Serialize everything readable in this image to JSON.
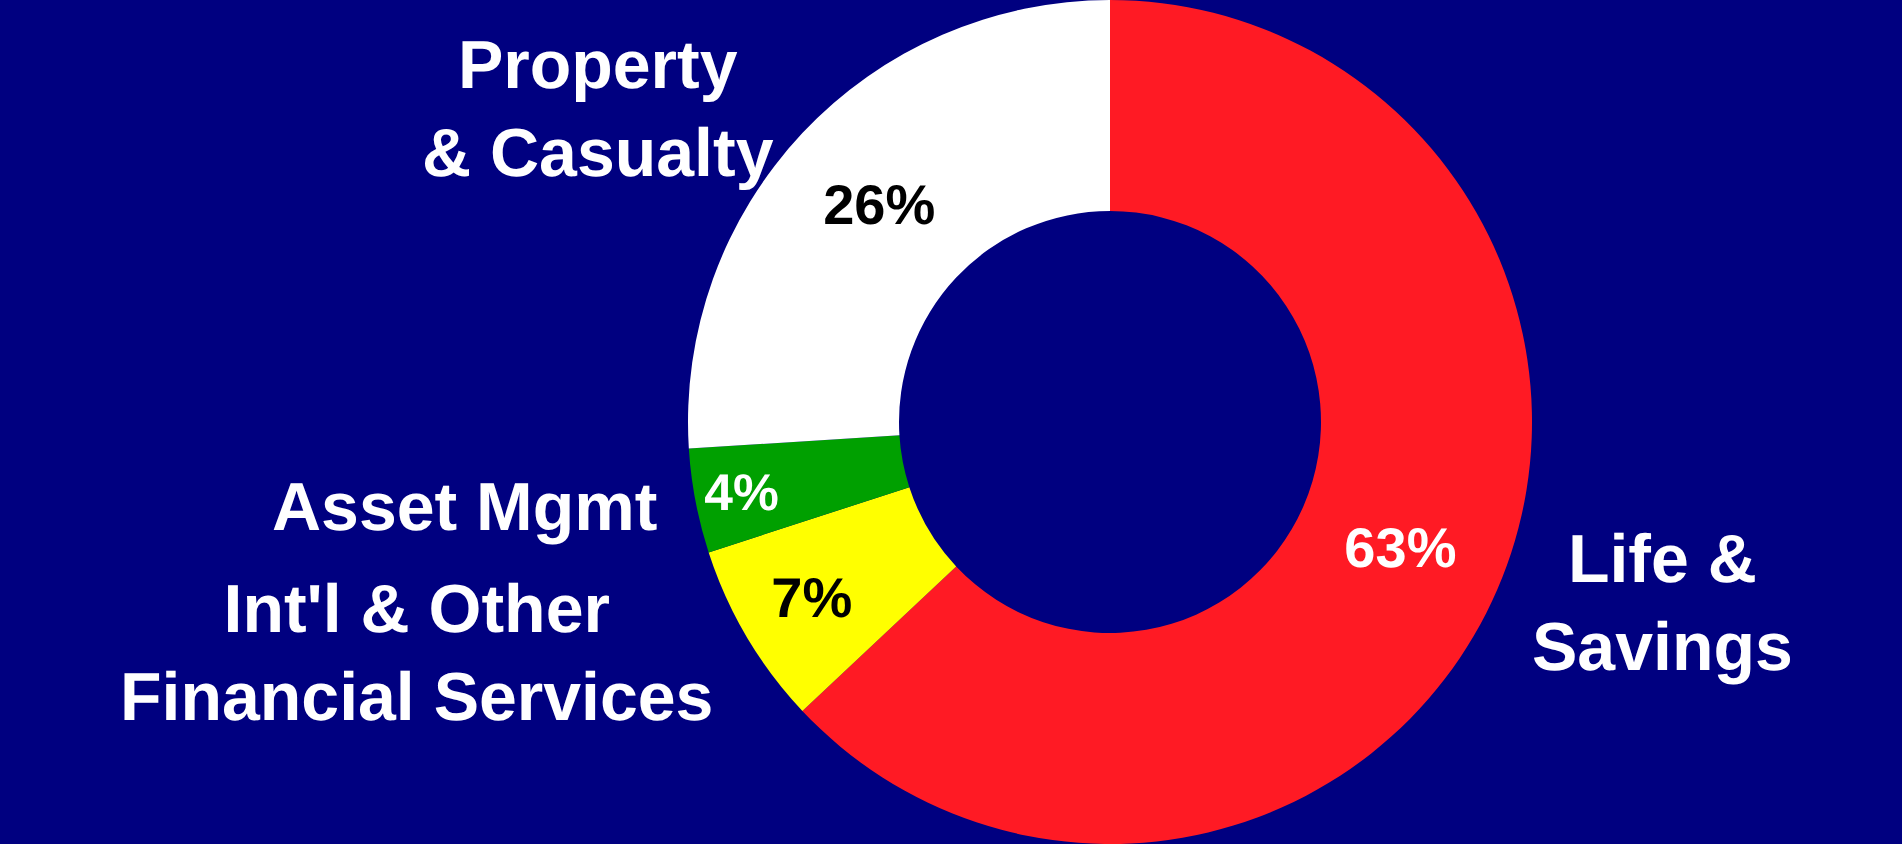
{
  "chart_data": {
    "type": "donut",
    "categories": [
      "Life &\nSavings",
      "Int'l & Other\nFinancial Services",
      "Asset Mgmt",
      "Property\n& Casualty"
    ],
    "values": [
      63,
      7,
      4,
      26
    ],
    "colors": [
      "#ff1a24",
      "#ffff00",
      "#00a000",
      "#ffffff"
    ],
    "value_labels": [
      "63%",
      "7%",
      "4%",
      "26%"
    ],
    "legend": false
  }
}
